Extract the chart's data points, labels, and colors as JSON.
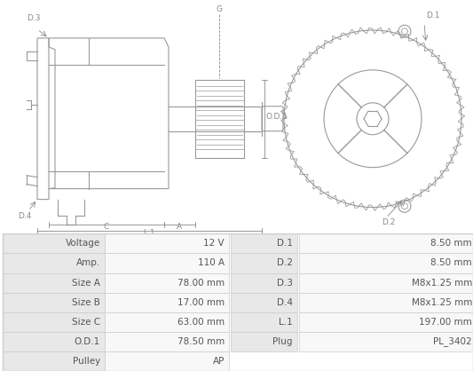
{
  "table": {
    "left_labels": [
      "Voltage",
      "Amp.",
      "Size A",
      "Size B",
      "Size C",
      "O.D.1",
      "Pulley"
    ],
    "left_values": [
      "12 V",
      "110 A",
      "78.00 mm",
      "17.00 mm",
      "63.00 mm",
      "78.50 mm",
      "AP"
    ],
    "right_labels": [
      "D.1",
      "D.2",
      "D.3",
      "D.4",
      "L.1",
      "Plug",
      ""
    ],
    "right_values": [
      "8.50 mm",
      "8.50 mm",
      "M8x1.25 mm",
      "M8x1.25 mm",
      "197.00 mm",
      "PL_3402",
      ""
    ]
  },
  "bg_color": "#f5f5f5",
  "table_bg_label": "#e8e8e8",
  "table_bg_value": "#f8f8f8",
  "table_border": "#cccccc",
  "text_color": "#555555",
  "diagram_color": "#999999",
  "font_size": 7.5,
  "diagram_line_color": "#aaaaaa"
}
